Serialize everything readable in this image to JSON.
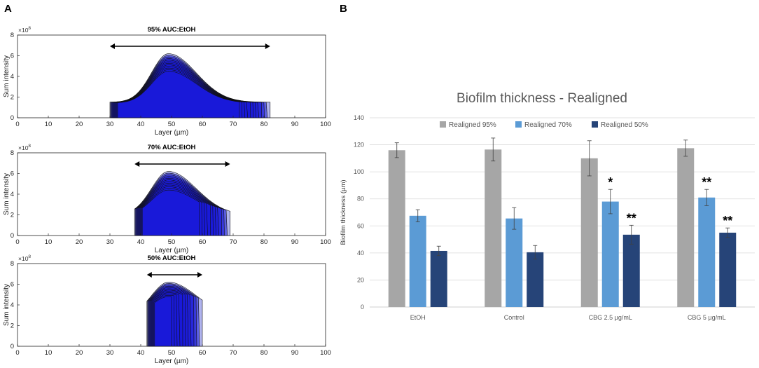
{
  "panel_a_label": "A",
  "panel_b_label": "B",
  "chart_data": [
    {
      "type": "area",
      "title": "95% AUC:EtOH",
      "xlabel": "Layer (µm)",
      "ylabel": "Sum intensity",
      "y_exponent_label": "×10",
      "y_exponent_power": "8",
      "xlim": [
        0,
        100
      ],
      "ylim": [
        0,
        8
      ],
      "xticks": [
        "0",
        "10",
        "20",
        "30",
        "40",
        "50",
        "60",
        "70",
        "80",
        "90",
        "100"
      ],
      "yticks": [
        "0",
        "2",
        "4",
        "6",
        "8"
      ],
      "arrow": [
        30,
        82
      ],
      "profile": {
        "start": 30,
        "end": 82,
        "edge_height": 1.5,
        "peak_x": 49,
        "peak_max": 6.2,
        "peak_min": 4.5
      }
    },
    {
      "type": "area",
      "title": "70% AUC:EtOH",
      "xlabel": "Layer (µm)",
      "ylabel": "Sum intensity",
      "y_exponent_label": "×10",
      "y_exponent_power": "8",
      "xlim": [
        0,
        100
      ],
      "ylim": [
        0,
        8
      ],
      "xticks": [
        "0",
        "10",
        "20",
        "30",
        "40",
        "50",
        "60",
        "70",
        "80",
        "90",
        "100"
      ],
      "yticks": [
        "0",
        "2",
        "4",
        "6",
        "8"
      ],
      "arrow": [
        38,
        69
      ],
      "profile": {
        "start": 38,
        "end": 69,
        "edge_height": 2.0,
        "peak_x": 49,
        "peak_max": 6.2,
        "peak_min": 4.4
      }
    },
    {
      "type": "area",
      "title": "50% AUC:EtOH",
      "xlabel": "Layer (µm)",
      "ylabel": "Sum intensity",
      "y_exponent_label": "×10",
      "y_exponent_power": "8",
      "xlim": [
        0,
        100
      ],
      "ylim": [
        0,
        8
      ],
      "xticks": [
        "0",
        "10",
        "20",
        "30",
        "40",
        "50",
        "60",
        "70",
        "80",
        "90",
        "100"
      ],
      "yticks": [
        "0",
        "2",
        "4",
        "6",
        "8"
      ],
      "arrow": [
        42,
        60
      ],
      "profile": {
        "start": 42,
        "end": 60,
        "edge_height": 2.9,
        "peak_x": 49,
        "peak_max": 6.2,
        "peak_min": 4.8
      }
    },
    {
      "type": "bar",
      "title": "Biofilm thickness - Realigned",
      "xlabel": "",
      "ylabel": "Biofilm thickness (µm)",
      "ylim": [
        0,
        140
      ],
      "yticks": [
        "0",
        "20",
        "40",
        "60",
        "80",
        "100",
        "120",
        "140"
      ],
      "categories": [
        "EtOH",
        "Control",
        "CBG 2.5 µg/mL",
        "CBG 5 µg/mL"
      ],
      "series": [
        {
          "name": "Realigned 95%",
          "color": "#a6a6a6",
          "values": [
            116,
            116.5,
            110,
            117.5
          ],
          "errors": [
            5.5,
            8.5,
            13,
            6
          ]
        },
        {
          "name": "Realigned 70%",
          "color": "#5b9bd5",
          "values": [
            67.5,
            65.5,
            78,
            81
          ],
          "errors": [
            4.5,
            8,
            9,
            6
          ]
        },
        {
          "name": "Realigned 50%",
          "color": "#264478",
          "values": [
            41.5,
            40.5,
            53.5,
            55
          ],
          "errors": [
            3.5,
            5,
            7,
            3.5
          ]
        }
      ],
      "significance": [
        [
          "",
          "",
          ""
        ],
        [
          "",
          "",
          ""
        ],
        [
          "",
          "*",
          "**"
        ],
        [
          "",
          "**",
          "**"
        ]
      ]
    }
  ]
}
